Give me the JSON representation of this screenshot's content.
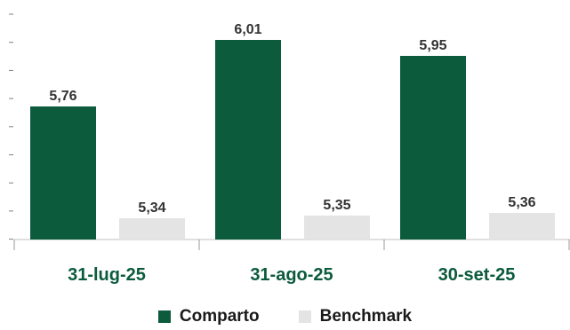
{
  "chart_data": {
    "type": "bar",
    "categories": [
      "31-lug-25",
      "31-ago-25",
      "30-set-25"
    ],
    "series": [
      {
        "name": "Comparto",
        "values": [
          5.76,
          6.01,
          5.95
        ],
        "labels": [
          "5,76",
          "6,01",
          "5,95"
        ],
        "color": "#0b5b3c"
      },
      {
        "name": "Benchmark",
        "values": [
          5.34,
          5.35,
          5.36
        ],
        "labels": [
          "5,34",
          "5,35",
          "5,36"
        ],
        "color": "#e4e4e4"
      }
    ],
    "ylim": [
      5.26,
      6.01
    ],
    "grid": false,
    "legend_position": "bottom",
    "category_label_color": "#0b5b3c"
  }
}
